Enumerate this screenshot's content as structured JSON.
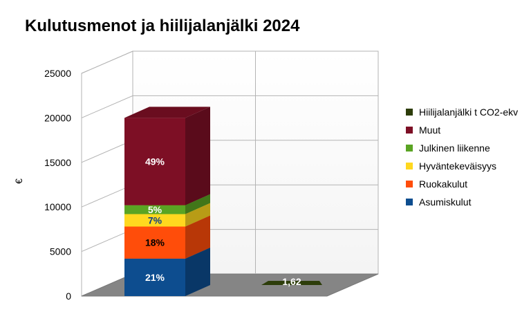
{
  "chart_data": {
    "type": "bar",
    "title": "Kulutusmenot ja hiilijalanjälki 2024",
    "ylabel": "€",
    "xlabel": "",
    "ylim": [
      0,
      25000
    ],
    "yticks": [
      0,
      5000,
      10000,
      15000,
      20000,
      25000
    ],
    "stacked": true,
    "three_d": true,
    "grid": true,
    "legend_position": "right",
    "categories": [
      "",
      ""
    ],
    "series": [
      {
        "name": "Asumiskulut",
        "color": "#0d4d8f",
        "values": [
          4200,
          0
        ],
        "labels": [
          "21%",
          ""
        ]
      },
      {
        "name": "Ruokakulut",
        "color": "#ff4d0a",
        "values": [
          3600,
          0
        ],
        "labels": [
          "18%",
          ""
        ]
      },
      {
        "name": "Hyväntekeväisyys",
        "color": "#ffd81f",
        "values": [
          1400,
          0
        ],
        "labels": [
          "7%",
          ""
        ]
      },
      {
        "name": "Julkinen liikenne",
        "color": "#5aa423",
        "values": [
          1000,
          0
        ],
        "labels": [
          "5%",
          ""
        ]
      },
      {
        "name": "Muut",
        "color": "#7d0f25",
        "values": [
          9800,
          0
        ],
        "labels": [
          "49%",
          ""
        ]
      },
      {
        "name": "Hiilijalanjälki t CO2-ekv",
        "color": "#2d3d0a",
        "values": [
          0,
          1.62
        ],
        "labels": [
          "",
          "1,62"
        ]
      }
    ]
  }
}
